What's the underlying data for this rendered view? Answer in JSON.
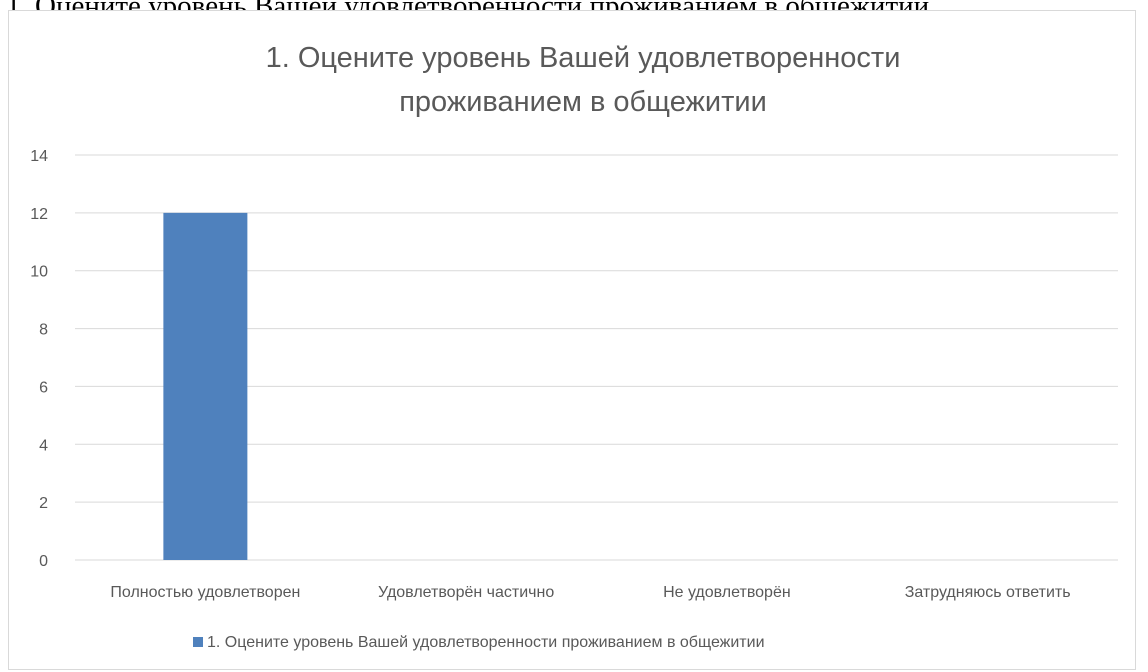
{
  "document_text": "1. Оцените уровень Вашей удовлетворенности проживанием в общежитии",
  "chart_data": {
    "type": "bar",
    "title_lines": [
      "1. Оцените уровень Вашей удовлетворенности",
      "проживанием в общежитии"
    ],
    "categories": [
      "Полностью удовлетворен",
      "Удовлетворён частично",
      "Не удовлетворён",
      "Затрудняюсь ответить"
    ],
    "series": [
      {
        "name": "1. Оцените уровень Вашей удовлетворенности проживанием в общежитии",
        "values": [
          12,
          0,
          0,
          0
        ],
        "color": "#4f81bd"
      }
    ],
    "yticks": [
      "0",
      "2",
      "4",
      "6",
      "8",
      "10",
      "12",
      "14"
    ],
    "ylim": [
      0,
      14
    ],
    "grid": true,
    "legend_position": "bottom",
    "colors": {
      "grid": "#d9d9d9",
      "text": "#595959",
      "title": "#595959"
    }
  }
}
